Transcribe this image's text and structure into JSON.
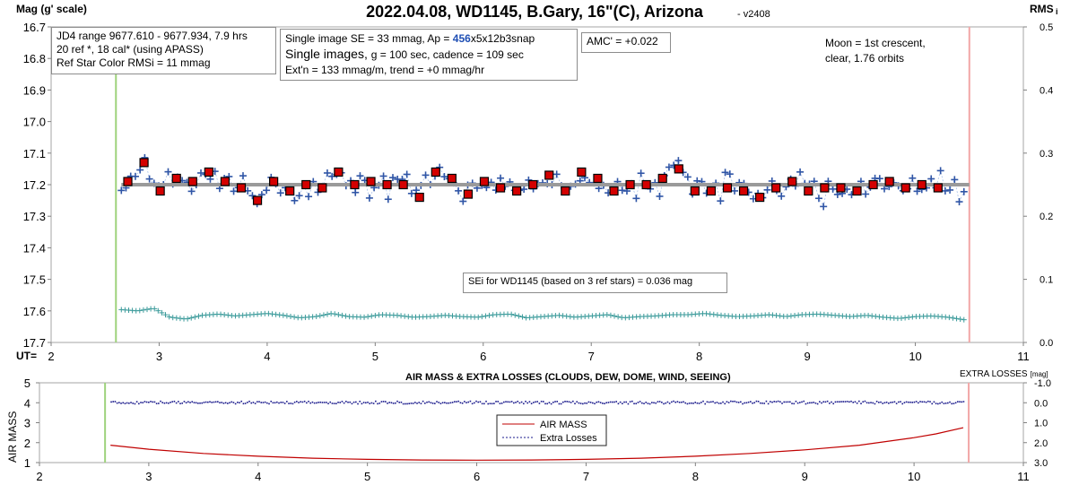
{
  "chart_data": [
    {
      "type": "scatter",
      "title": "2022.04.08, WD1145, B.Gary, 16\"(C), Arizona",
      "version": "- v2408",
      "ylabel_left": "Mag (g' scale)",
      "ylabel_right": "RMS",
      "ylabel_right_sub": "i",
      "xlabel": "UT=",
      "xlim": [
        2,
        11
      ],
      "ylim_left": [
        16.7,
        17.7
      ],
      "ylim_right": [
        0.0,
        0.5
      ],
      "y_inverted": true,
      "x_ticks": [
        "2",
        "3",
        "4",
        "5",
        "6",
        "7",
        "8",
        "9",
        "10",
        "11"
      ],
      "y_ticks_left": [
        "16.7",
        "16.8",
        "16.9",
        "17.0",
        "17.1",
        "17.2",
        "17.3",
        "17.4",
        "17.5",
        "17.6",
        "17.7"
      ],
      "y_ticks_right": [
        "0.5",
        "0.4",
        "0.3",
        "0.2",
        "0.1",
        "0.0"
      ],
      "grid": false,
      "vlines": [
        {
          "x": 2.6,
          "color": "#9ed27c"
        },
        {
          "x": 10.5,
          "color": "#f2a7a7"
        }
      ],
      "model_level": 17.2,
      "raw_count": 181,
      "binned": {
        "x": [
          2.71,
          2.86,
          3.01,
          3.16,
          3.31,
          3.46,
          3.61,
          3.76,
          3.91,
          4.06,
          4.21,
          4.36,
          4.51,
          4.66,
          4.81,
          4.96,
          5.11,
          5.26,
          5.41,
          5.56,
          5.71,
          5.86,
          6.01,
          6.16,
          6.31,
          6.46,
          6.61,
          6.76,
          6.91,
          7.06,
          7.21,
          7.36,
          7.51,
          7.66,
          7.81,
          7.96,
          8.11,
          8.26,
          8.41,
          8.56,
          8.71,
          8.86,
          9.01,
          9.16,
          9.31,
          9.46,
          9.61,
          9.76,
          9.91,
          10.06,
          10.21
        ],
        "y": [
          17.19,
          17.13,
          17.22,
          17.18,
          17.19,
          17.16,
          17.19,
          17.21,
          17.25,
          17.19,
          17.22,
          17.2,
          17.21,
          17.16,
          17.2,
          17.19,
          17.2,
          17.2,
          17.24,
          17.16,
          17.18,
          17.23,
          17.19,
          17.21,
          17.22,
          17.2,
          17.17,
          17.22,
          17.16,
          17.18,
          17.22,
          17.2,
          17.2,
          17.18,
          17.15,
          17.22,
          17.22,
          17.21,
          17.22,
          17.24,
          17.21,
          17.19,
          17.22,
          17.21,
          17.21,
          17.22,
          17.2,
          17.19,
          17.21,
          17.2,
          17.21
        ]
      },
      "rms_series": {
        "name": "SEi",
        "x": [
          2.65,
          2.8,
          2.95,
          3.1,
          3.25,
          3.4,
          3.55,
          3.7,
          3.85,
          4.0,
          4.15,
          4.3,
          4.45,
          4.6,
          4.75,
          4.9,
          5.05,
          5.2,
          5.35,
          5.5,
          5.65,
          5.8,
          5.95,
          6.1,
          6.25,
          6.4,
          6.55,
          6.7,
          6.85,
          7.0,
          7.15,
          7.3,
          7.45,
          7.6,
          7.75,
          7.9,
          8.05,
          8.2,
          8.35,
          8.5,
          8.65,
          8.8,
          8.95,
          9.1,
          9.25,
          9.4,
          9.55,
          9.7,
          9.85,
          10.0,
          10.15,
          10.3,
          10.45
        ],
        "y": [
          0.052,
          0.05,
          0.054,
          0.04,
          0.037,
          0.043,
          0.045,
          0.042,
          0.044,
          0.046,
          0.043,
          0.039,
          0.041,
          0.046,
          0.041,
          0.04,
          0.044,
          0.043,
          0.04,
          0.041,
          0.043,
          0.041,
          0.04,
          0.044,
          0.045,
          0.039,
          0.041,
          0.043,
          0.04,
          0.042,
          0.044,
          0.039,
          0.041,
          0.042,
          0.044,
          0.044,
          0.046,
          0.043,
          0.041,
          0.042,
          0.044,
          0.041,
          0.044,
          0.045,
          0.043,
          0.041,
          0.043,
          0.04,
          0.038,
          0.041,
          0.042,
          0.04,
          0.036
        ]
      },
      "annotations": {
        "jd_line1": "JD4 range 9677.610 - 9677.934, 7.9 hrs",
        "jd_line2": "20 ref *, 18 cal* (using APASS)",
        "jd_line3": "Ref Star Color RMSi = 11 mmag",
        "se_line1_a": "Single image SE = 33 mmag, Ap = ",
        "se_line1_b": "456",
        "se_line1_c": "x5x12b3snap",
        "se_line2_a": "Single images, ",
        "se_line2_b": "g = 100 sec, cadence = 109 sec",
        "se_line3": "Ext'n = 133 mmag/m, trend = +0 mmag/hr",
        "amc": "AMC' = +0.022",
        "moon_line1": "Moon = 1st crescent,",
        "moon_line2": "clear,  1.76 orbits",
        "sei": "SEi for WD1145 (based on 3 ref stars) = 0.036 mag"
      }
    },
    {
      "type": "line",
      "title": "AIR MASS & EXTRA LOSSES (CLOUDS, DEW, DOME, WIND, SEEING)",
      "ylabel_left": "AIR MASS",
      "ylabel_right": "EXTRA LOSSES",
      "ylabel_right_unit": "[mag]",
      "xlim": [
        2,
        11
      ],
      "ylim_left": [
        1,
        5
      ],
      "ylim_right": [
        3.0,
        -1.0
      ],
      "x_ticks": [
        "2",
        "3",
        "4",
        "5",
        "6",
        "7",
        "8",
        "9",
        "10",
        "11"
      ],
      "y_ticks_left": [
        "5",
        "4",
        "3",
        "2",
        "1"
      ],
      "y_ticks_right": [
        "-1.0",
        "0.0",
        "1.0",
        "2.0",
        "3.0"
      ],
      "vlines": [
        {
          "x": 2.6,
          "color": "#9ed27c"
        },
        {
          "x": 10.5,
          "color": "#f2a7a7"
        }
      ],
      "series": [
        {
          "name": "AIR MASS",
          "color": "#c00000",
          "x": [
            2.65,
            3.0,
            3.5,
            4.0,
            4.5,
            5.0,
            5.5,
            6.0,
            6.5,
            7.0,
            7.5,
            8.0,
            8.5,
            9.0,
            9.5,
            10.0,
            10.2,
            10.45
          ],
          "y": [
            1.87,
            1.67,
            1.46,
            1.32,
            1.22,
            1.16,
            1.13,
            1.12,
            1.13,
            1.16,
            1.22,
            1.32,
            1.46,
            1.64,
            1.87,
            2.25,
            2.44,
            2.75
          ]
        },
        {
          "name": "Extra Losses",
          "color": "#1a1a8c",
          "x": [
            2.65,
            10.45
          ],
          "y": [
            0.0,
            0.0
          ]
        }
      ]
    }
  ]
}
